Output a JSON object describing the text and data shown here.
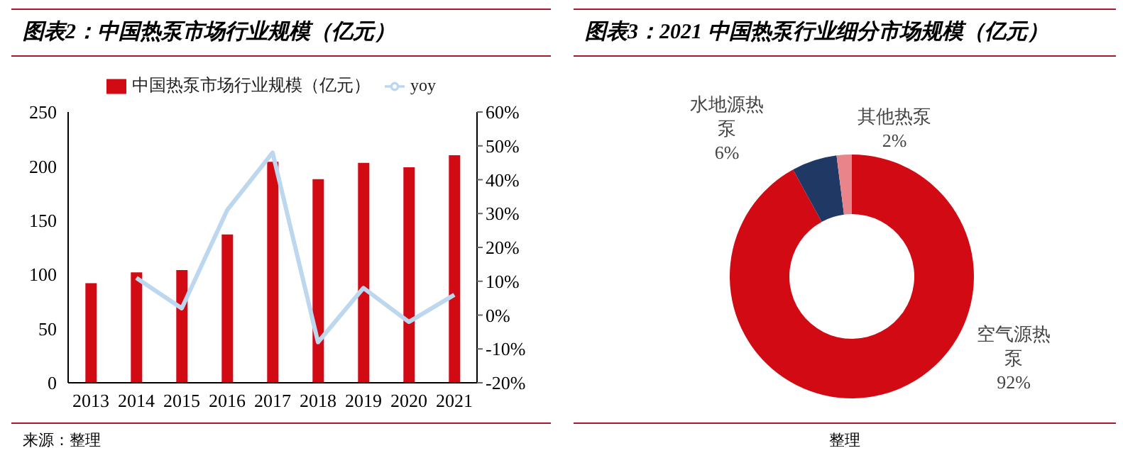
{
  "chart_data": [
    {
      "type": "bar",
      "title": "图表2：中国热泵市场行业规模（亿元）",
      "categories": [
        "2013",
        "2014",
        "2015",
        "2016",
        "2017",
        "2018",
        "2019",
        "2020",
        "2021"
      ],
      "series": [
        {
          "name": "中国热泵市场行业规模（亿元）",
          "color": "#d10a14",
          "values": [
            92,
            102,
            104,
            137,
            204,
            188,
            203,
            199,
            210
          ]
        },
        {
          "name": "yoy",
          "type": "line",
          "axis": "y2",
          "color": "#bdd7ee",
          "values": [
            null,
            11,
            2,
            31,
            48,
            -8,
            8,
            -2,
            6
          ]
        }
      ],
      "ylim": [
        0,
        250
      ],
      "yticks": [
        0,
        50,
        100,
        150,
        200,
        250
      ],
      "y2lim": [
        -20,
        60
      ],
      "y2ticks": [
        {
          "value": -20,
          "label": "-20%"
        },
        {
          "value": -10,
          "label": "-10%"
        },
        {
          "value": 0,
          "label": "0%"
        },
        {
          "value": 10,
          "label": "10%"
        },
        {
          "value": 20,
          "label": "20%"
        },
        {
          "value": 30,
          "label": "30%"
        },
        {
          "value": 40,
          "label": "40%"
        },
        {
          "value": 50,
          "label": "50%"
        },
        {
          "value": 60,
          "label": "60%"
        }
      ],
      "legend": "top",
      "marker": "none",
      "annotations": [
        "来源：整理"
      ]
    },
    {
      "type": "donut",
      "title": "图表3：2021 中国热泵行业细分市场规模（亿元）",
      "categories": [
        "空气源热泵",
        "水地源热泵",
        "其他热泵"
      ],
      "values": [
        92,
        6,
        2
      ],
      "colors": [
        "#d10a14",
        "#1f3864",
        "#e8848a"
      ],
      "value_labels": [
        "92%",
        "6%",
        "2%"
      ],
      "annotations": [
        "整理"
      ]
    }
  ]
}
